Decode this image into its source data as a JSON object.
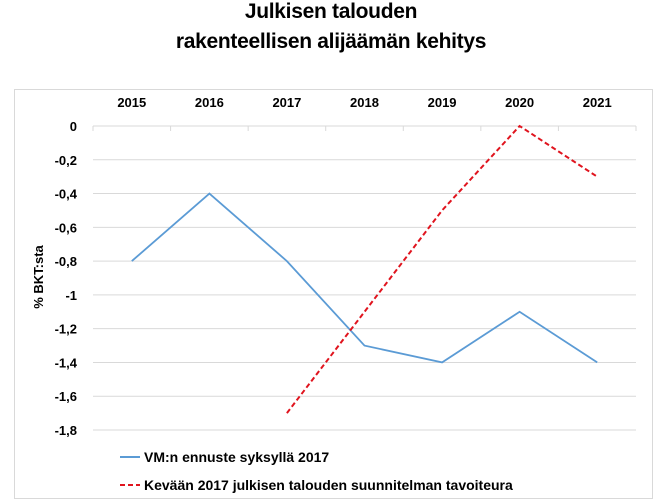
{
  "chart_data": {
    "type": "line",
    "title": [
      "Julkisen talouden",
      "rakenteellisen alijäämän kehitys"
    ],
    "xlabel": "",
    "ylabel": "% BKT:sta",
    "categories": [
      "2015",
      "2016",
      "2017",
      "2018",
      "2019",
      "2020",
      "2021"
    ],
    "yticks": [
      0,
      -0.2,
      -0.4,
      -0.6,
      -0.8,
      -1,
      -1.2,
      -1.4,
      -1.6,
      -1.8
    ],
    "ytick_labels": [
      "0",
      "-0,2",
      "-0,4",
      "-0,6",
      "-0,8",
      "-1",
      "-1,2",
      "-1,4",
      "-1,6",
      "-1,8"
    ],
    "ylim": [
      -1.8,
      0
    ],
    "grid": true,
    "legend_position": "bottom",
    "series": [
      {
        "name": "VM:n ennuste syksyllä 2017",
        "color": "#5b9bd5",
        "dash": false,
        "values": [
          -0.8,
          -0.4,
          -0.8,
          -1.3,
          -1.4,
          -1.1,
          -1.4
        ]
      },
      {
        "name": "Kevään 2017 julkisen talouden suunnitelman tavoiteura",
        "color": "#e0141e",
        "dash": true,
        "values": [
          null,
          null,
          -1.7,
          -1.1,
          -0.5,
          0,
          -0.3
        ]
      }
    ]
  }
}
